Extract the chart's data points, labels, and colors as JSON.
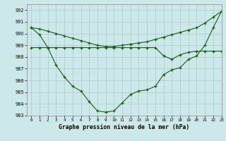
{
  "x": [
    0,
    1,
    2,
    3,
    4,
    5,
    6,
    7,
    8,
    9,
    10,
    11,
    12,
    13,
    14,
    15,
    16,
    17,
    18,
    19,
    20,
    21,
    22,
    23
  ],
  "line_diagonal": [
    990.5,
    990.4,
    990.2,
    990.0,
    989.8,
    989.6,
    989.4,
    989.2,
    989.0,
    988.9,
    988.9,
    989.0,
    989.1,
    989.2,
    989.3,
    989.5,
    989.7,
    989.9,
    990.1,
    990.3,
    990.5,
    990.9,
    991.4,
    991.9
  ],
  "line_ucurve": [
    990.5,
    989.9,
    988.8,
    987.3,
    986.3,
    985.5,
    985.1,
    984.2,
    983.4,
    983.3,
    983.4,
    984.1,
    984.8,
    985.1,
    985.2,
    985.5,
    986.5,
    986.9,
    987.1,
    987.8,
    988.1,
    989.0,
    990.5,
    991.9
  ],
  "line_flat": [
    988.8,
    988.8,
    988.8,
    988.8,
    988.8,
    988.8,
    988.8,
    988.8,
    988.8,
    988.8,
    988.8,
    988.8,
    988.8,
    988.8,
    988.8,
    988.8,
    988.1,
    987.8,
    988.2,
    988.4,
    988.5,
    988.5,
    988.5,
    988.5
  ],
  "line_color": "#1a5c1a",
  "bg_color": "#cce8e8",
  "grid_color": "#aacccc",
  "xlabel": "Graphe pression niveau de la mer (hPa)",
  "ylim": [
    983,
    992.5
  ],
  "xlim": [
    -0.5,
    23
  ],
  "yticks": [
    983,
    984,
    985,
    986,
    987,
    988,
    989,
    990,
    991,
    992
  ],
  "xticks": [
    0,
    1,
    2,
    3,
    4,
    5,
    6,
    7,
    8,
    9,
    10,
    11,
    12,
    13,
    14,
    15,
    16,
    17,
    18,
    19,
    20,
    21,
    22,
    23
  ]
}
